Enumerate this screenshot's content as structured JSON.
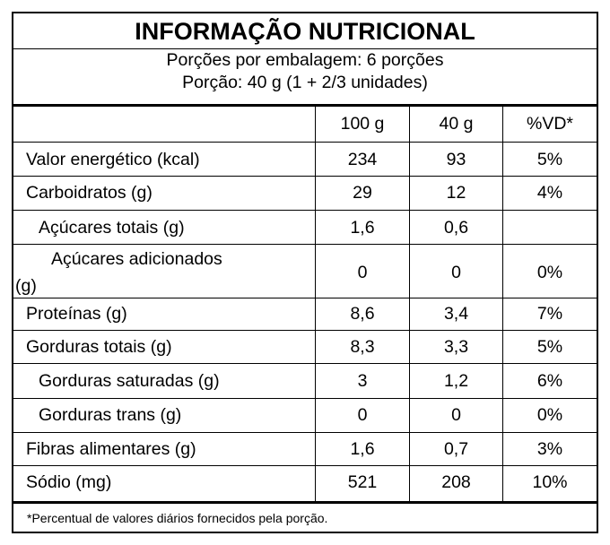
{
  "title": "INFORMAÇÃO NUTRICIONAL",
  "serving_line_1": "Porções por embalagem: 6 porções",
  "serving_line_2": "Porção: 40 g (1 + 2/3 unidades)",
  "columns": [
    "100 g",
    "40 g",
    "%VD*"
  ],
  "rows": [
    {
      "name": "Valor energético (kcal)",
      "per_100g": "234",
      "per_portion": "93",
      "dv": "5%"
    },
    {
      "name": "Carboidratos (g)",
      "per_100g": "29",
      "per_portion": "12",
      "dv": "4%"
    },
    {
      "name": "Açúcares totais (g)",
      "per_100g": "1,6",
      "per_portion": "0,6",
      "dv": ""
    },
    {
      "name_line_1": "Açúcares adicionados",
      "name_line_2": "(g)",
      "per_100g": "0",
      "per_portion": "0",
      "dv": "0%"
    },
    {
      "name": "Proteínas (g)",
      "per_100g": "8,6",
      "per_portion": "3,4",
      "dv": "7%"
    },
    {
      "name": "Gorduras totais (g)",
      "per_100g": "8,3",
      "per_portion": "3,3",
      "dv": "5%"
    },
    {
      "name": "Gorduras saturadas (g)",
      "per_100g": "3",
      "per_portion": "1,2",
      "dv": "6%"
    },
    {
      "name": "Gorduras trans (g)",
      "per_100g": "0",
      "per_portion": "0",
      "dv": "0%"
    },
    {
      "name": "Fibras alimentares (g)",
      "per_100g": "1,6",
      "per_portion": "0,7",
      "dv": "3%"
    },
    {
      "name": "Sódio (mg)",
      "per_100g": "521",
      "per_portion": "208",
      "dv": "10%"
    }
  ],
  "footnote": "*Percentual de valores diários fornecidos pela porção."
}
